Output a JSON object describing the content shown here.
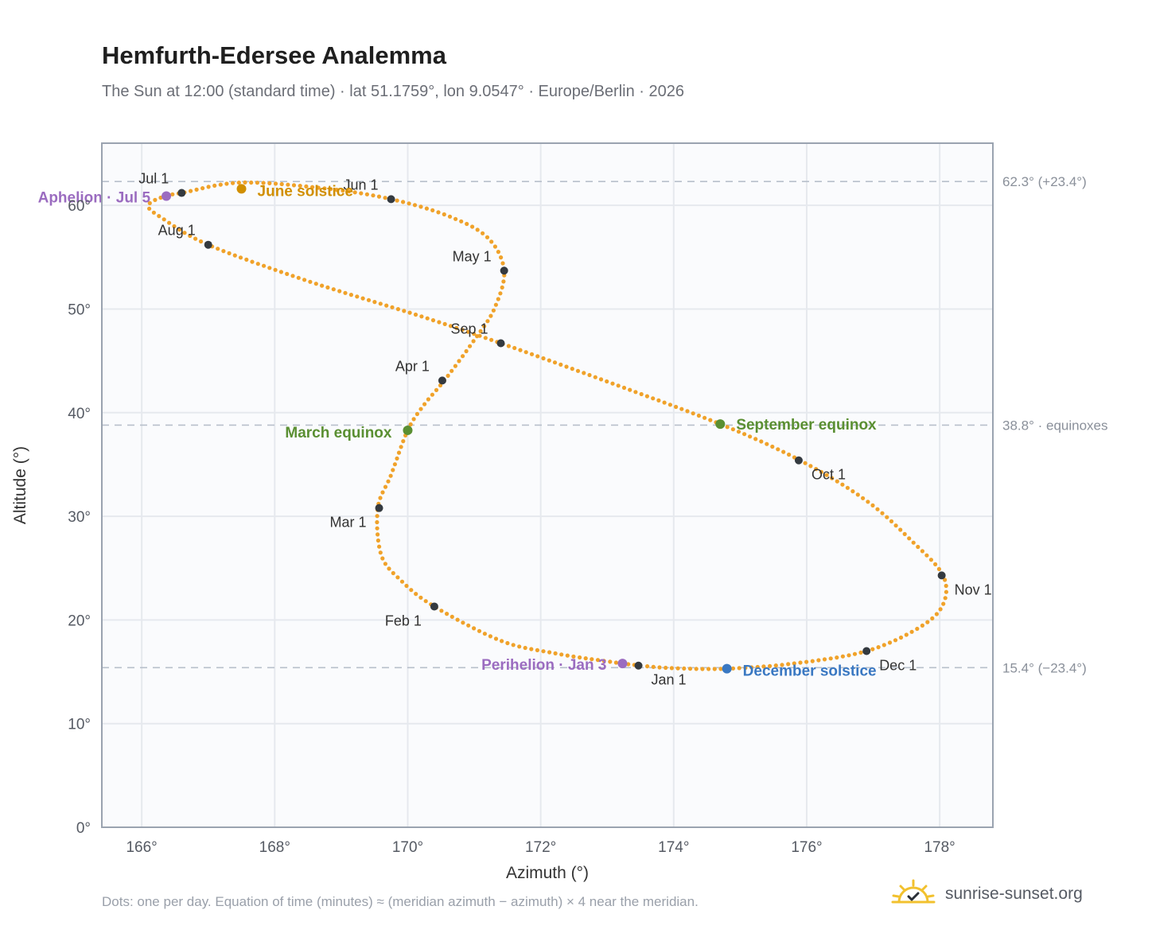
{
  "title": "Hemfurth-Edersee Analemma",
  "subtitle": "The Sun at 12:00 (standard time) · lat 51.1759°, lon 9.0547° · Europe/Berlin · 2026",
  "footnote": "Dots: one per day. Equation of time (minutes) ≈ (meridian azimuth − azimuth) × 4 near the meridian.",
  "brand": {
    "name": "sunrise-sunset.org",
    "icon": "sun-logo-icon"
  },
  "colors": {
    "path": "#f0a22a",
    "month_marker": "#343a40",
    "solstice_june": "#d18f00",
    "solstice_december": "#3a78c2",
    "equinox": "#5a8f32",
    "apsis": "#9b6cc0",
    "reference_line": "#b8c0cb",
    "grid": "#e6e9ee",
    "plot_background": "#fafbfd",
    "frame": "#9aa3b0",
    "tick_text": "#555a63",
    "month_text": "#333333"
  },
  "chart_data": {
    "type": "scatter",
    "title": "Hemfurth-Edersee Analemma",
    "xlabel": "Azimuth (°)",
    "ylabel": "Altitude (°)",
    "xlim": [
      165.4,
      178.8
    ],
    "ylim": [
      0,
      66
    ],
    "xticks": [
      166,
      168,
      170,
      172,
      174,
      176,
      178
    ],
    "xtick_labels": [
      "166°",
      "168°",
      "170°",
      "172°",
      "174°",
      "176°",
      "178°"
    ],
    "yticks": [
      0,
      10,
      20,
      30,
      40,
      50,
      60
    ],
    "ytick_labels": [
      "0°",
      "10°",
      "20°",
      "30°",
      "40°",
      "50°",
      "60°"
    ],
    "grid": true,
    "daily_path_keypoints": [
      {
        "x": 173.5,
        "y": 15.6
      },
      {
        "x": 172.9,
        "y": 16.1
      },
      {
        "x": 172.2,
        "y": 16.8
      },
      {
        "x": 171.4,
        "y": 18.0
      },
      {
        "x": 170.4,
        "y": 21.3
      },
      {
        "x": 169.9,
        "y": 23.8
      },
      {
        "x": 169.6,
        "y": 26.3
      },
      {
        "x": 169.55,
        "y": 30.8
      },
      {
        "x": 169.75,
        "y": 34.0
      },
      {
        "x": 170.0,
        "y": 38.3
      },
      {
        "x": 170.25,
        "y": 40.8
      },
      {
        "x": 170.55,
        "y": 43.1
      },
      {
        "x": 171.0,
        "y": 47.0
      },
      {
        "x": 171.3,
        "y": 50.0
      },
      {
        "x": 171.45,
        "y": 53.7
      },
      {
        "x": 171.2,
        "y": 56.9
      },
      {
        "x": 170.6,
        "y": 59.0
      },
      {
        "x": 169.75,
        "y": 60.6
      },
      {
        "x": 168.8,
        "y": 61.6
      },
      {
        "x": 167.5,
        "y": 62.2
      },
      {
        "x": 166.6,
        "y": 61.2
      },
      {
        "x": 166.35,
        "y": 60.9
      },
      {
        "x": 166.1,
        "y": 60.0
      },
      {
        "x": 166.3,
        "y": 58.8
      },
      {
        "x": 167.0,
        "y": 56.2
      },
      {
        "x": 168.5,
        "y": 52.7
      },
      {
        "x": 170.2,
        "y": 49.3
      },
      {
        "x": 171.4,
        "y": 46.7
      },
      {
        "x": 173.0,
        "y": 43.0
      },
      {
        "x": 174.7,
        "y": 38.9
      },
      {
        "x": 175.9,
        "y": 35.4
      },
      {
        "x": 176.9,
        "y": 31.5
      },
      {
        "x": 177.6,
        "y": 27.5
      },
      {
        "x": 178.05,
        "y": 24.3
      },
      {
        "x": 178.05,
        "y": 21.5
      },
      {
        "x": 177.7,
        "y": 19.3
      },
      {
        "x": 176.9,
        "y": 17.0
      },
      {
        "x": 175.8,
        "y": 15.8
      },
      {
        "x": 174.8,
        "y": 15.3
      },
      {
        "x": 174.0,
        "y": 15.35
      },
      {
        "x": 173.5,
        "y": 15.6
      }
    ],
    "month_markers": [
      {
        "label": "Jan 1",
        "x": 173.47,
        "y": 15.6,
        "label_anchor": "start",
        "label_dx": 16,
        "label_dy": 24
      },
      {
        "label": "Feb 1",
        "x": 170.4,
        "y": 21.3,
        "label_anchor": "end",
        "label_dx": -16,
        "label_dy": 24
      },
      {
        "label": "Mar 1",
        "x": 169.57,
        "y": 30.8,
        "label_anchor": "end",
        "label_dx": -16,
        "label_dy": 24
      },
      {
        "label": "Apr 1",
        "x": 170.52,
        "y": 43.1,
        "label_anchor": "end",
        "label_dx": -16,
        "label_dy": -12
      },
      {
        "label": "May 1",
        "x": 171.45,
        "y": 53.7,
        "label_anchor": "end",
        "label_dx": -16,
        "label_dy": -12
      },
      {
        "label": "Jun 1",
        "x": 169.75,
        "y": 60.6,
        "label_anchor": "end",
        "label_dx": -16,
        "label_dy": -12
      },
      {
        "label": "Jul 1",
        "x": 166.6,
        "y": 61.2,
        "label_anchor": "end",
        "label_dx": -16,
        "label_dy": -12
      },
      {
        "label": "Aug 1",
        "x": 167.0,
        "y": 56.2,
        "label_anchor": "end",
        "label_dx": -16,
        "label_dy": -12
      },
      {
        "label": "Sep 1",
        "x": 171.4,
        "y": 46.7,
        "label_anchor": "end",
        "label_dx": -16,
        "label_dy": -12
      },
      {
        "label": "Oct 1",
        "x": 175.88,
        "y": 35.4,
        "label_anchor": "start",
        "label_dx": 16,
        "label_dy": 24
      },
      {
        "label": "Nov 1",
        "x": 178.03,
        "y": 24.3,
        "label_anchor": "start",
        "label_dx": 16,
        "label_dy": 24
      },
      {
        "label": "Dec 1",
        "x": 176.9,
        "y": 17.0,
        "label_anchor": "start",
        "label_dx": 16,
        "label_dy": 24
      }
    ],
    "events": [
      {
        "label": "June solstice",
        "x": 167.5,
        "y": 61.6,
        "color_key": "solstice_june",
        "label_anchor": "start",
        "label_dx": 20,
        "label_dy": 9
      },
      {
        "label": "March equinox",
        "x": 170.0,
        "y": 38.3,
        "color_key": "equinox",
        "label_anchor": "end",
        "label_dx": -20,
        "label_dy": 9
      },
      {
        "label": "September equinox",
        "x": 174.7,
        "y": 38.9,
        "color_key": "equinox",
        "label_anchor": "start",
        "label_dx": 20,
        "label_dy": 7
      },
      {
        "label": "December solstice",
        "x": 174.8,
        "y": 15.3,
        "color_key": "solstice_december",
        "label_anchor": "start",
        "label_dx": 20,
        "label_dy": 9
      },
      {
        "label": "Aphelion · Jul 5",
        "x": 166.37,
        "y": 60.9,
        "color_key": "apsis",
        "label_anchor": "end",
        "label_dx": -20,
        "label_dy": 8
      },
      {
        "label": "Perihelion · Jan 3",
        "x": 173.23,
        "y": 15.8,
        "color_key": "apsis",
        "label_anchor": "end",
        "label_dx": -20,
        "label_dy": 8
      }
    ],
    "reference_lines": [
      {
        "y": 62.3,
        "label": "62.3° (+23.4°)"
      },
      {
        "y": 38.8,
        "label": "38.8° · equinoxes"
      },
      {
        "y": 15.4,
        "label": "15.4° (−23.4°)"
      }
    ]
  }
}
